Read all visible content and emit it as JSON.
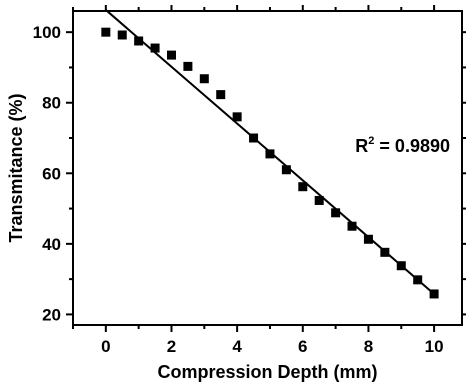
{
  "chart_data": {
    "type": "scatter",
    "title": "",
    "xlabel": "Compression Depth (mm)",
    "ylabel": "Transmitance (%)",
    "xlim": [
      -1,
      10.85
    ],
    "ylim": [
      17,
      106
    ],
    "xticks": [
      0,
      2,
      4,
      6,
      8,
      10
    ],
    "yticks": [
      20,
      40,
      60,
      80,
      100
    ],
    "grid": false,
    "legend": "none",
    "series": [
      {
        "marker": "square",
        "color": "#000000",
        "x": [
          0,
          0.5,
          1,
          1.5,
          2,
          2.5,
          3,
          3.5,
          4,
          4.5,
          5,
          5.5,
          6,
          6.5,
          7,
          7.5,
          8,
          8.5,
          9,
          9.5,
          10
        ],
        "y": [
          100,
          99.2,
          97.5,
          95.5,
          93.5,
          90.3,
          86.8,
          82.3,
          76.0,
          70.0,
          65.5,
          61.0,
          56.2,
          52.3,
          48.8,
          45.0,
          41.3,
          37.6,
          33.8,
          29.8,
          25.8
        ]
      }
    ],
    "fit_line": {
      "x": [
        0,
        10
      ],
      "y": [
        106.3,
        25.8
      ],
      "color": "#000000"
    },
    "annotation": {
      "base": "R",
      "sup": "2",
      "text": " = 0.9890",
      "x": 7.6,
      "y": 66
    }
  }
}
